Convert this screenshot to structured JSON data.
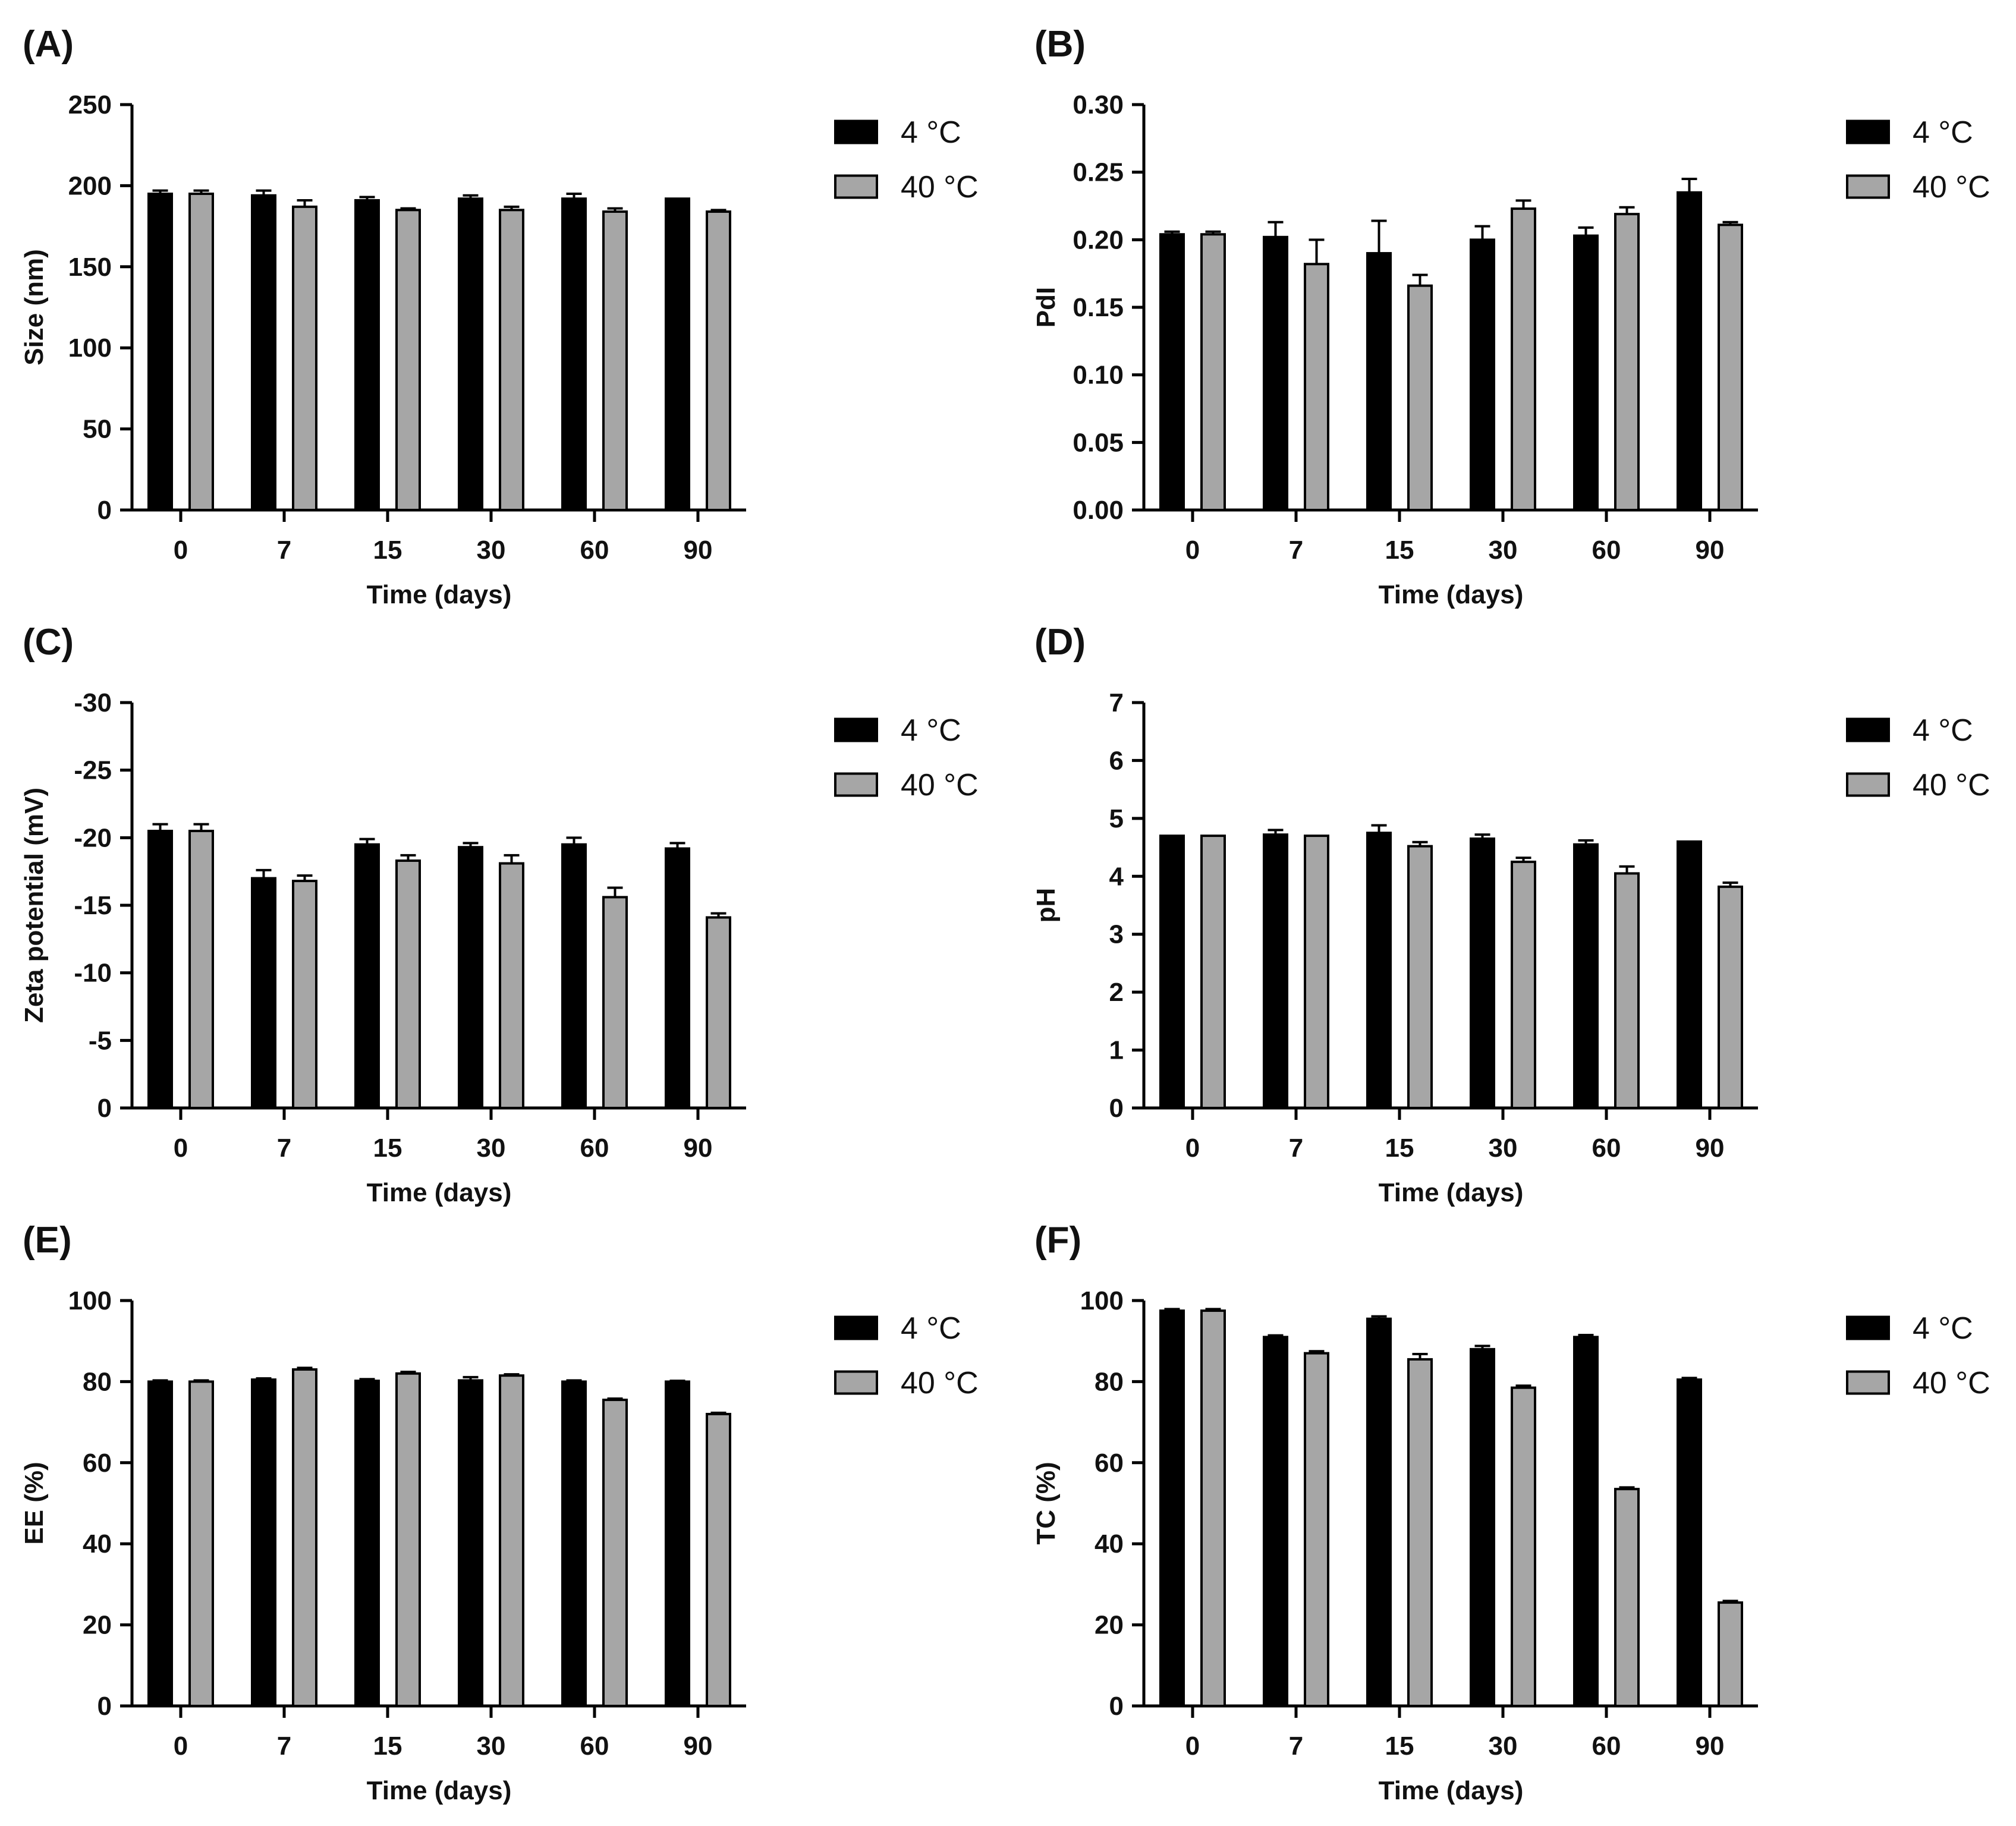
{
  "figure": {
    "colors": {
      "series_4C": "#000000",
      "series_40C": "#a6a6a6",
      "axis": "#000000"
    }
  },
  "chart_data": [
    {
      "panel": "(A)",
      "type": "bar",
      "categories": [
        "0",
        "7",
        "15",
        "30",
        "60",
        "90"
      ],
      "xlabel": "Time (days)",
      "ylabel": "Size (nm)",
      "ylim": [
        0,
        250
      ],
      "yticks": [
        0,
        50,
        100,
        150,
        200,
        250
      ],
      "ytick_labels": [
        "0",
        "50",
        "100",
        "150",
        "200",
        "250"
      ],
      "legend": [
        "4 °C",
        "40 °C"
      ],
      "legend_position": "right",
      "series": [
        {
          "name": "4 °C",
          "values": [
            195,
            194,
            191,
            192,
            192,
            192
          ],
          "errors": [
            2,
            3,
            2,
            2,
            3,
            0
          ]
        },
        {
          "name": "40 °C",
          "values": [
            195,
            187,
            185,
            185,
            184,
            184
          ],
          "errors": [
            2,
            4,
            1,
            2,
            2,
            1
          ]
        }
      ]
    },
    {
      "panel": "(B)",
      "type": "bar",
      "categories": [
        "0",
        "7",
        "15",
        "30",
        "60",
        "90"
      ],
      "xlabel": "Time (days)",
      "ylabel": "PdI",
      "ylim": [
        0,
        0.3
      ],
      "yticks": [
        0,
        0.05,
        0.1,
        0.15,
        0.2,
        0.25,
        0.3
      ],
      "ytick_labels": [
        "0.00",
        "0.05",
        "0.10",
        "0.15",
        "0.20",
        "0.25",
        "0.30"
      ],
      "legend": [
        "4 °C",
        "40 °C"
      ],
      "legend_position": "right",
      "series": [
        {
          "name": "4 °C",
          "values": [
            0.204,
            0.202,
            0.19,
            0.2,
            0.203,
            0.235
          ],
          "errors": [
            0.002,
            0.011,
            0.024,
            0.01,
            0.006,
            0.01
          ]
        },
        {
          "name": "40 °C",
          "values": [
            0.204,
            0.182,
            0.166,
            0.223,
            0.219,
            0.211
          ],
          "errors": [
            0.002,
            0.018,
            0.008,
            0.006,
            0.005,
            0.002
          ]
        }
      ]
    },
    {
      "panel": "(C)",
      "type": "bar",
      "categories": [
        "0",
        "7",
        "15",
        "30",
        "60",
        "90"
      ],
      "xlabel": "Time (days)",
      "ylabel": "Zeta potential (mV)",
      "ylim": [
        0,
        -30
      ],
      "yticks": [
        0,
        -5,
        -10,
        -15,
        -20,
        -25,
        -30
      ],
      "ytick_labels": [
        "0",
        "-5",
        "-10",
        "-15",
        "-20",
        "-25",
        "-30"
      ],
      "legend": [
        "4 °C",
        "40 °C"
      ],
      "legend_position": "right",
      "series": [
        {
          "name": "4 °C",
          "values": [
            -20.5,
            -17.0,
            -19.5,
            -19.3,
            -19.5,
            -19.2
          ],
          "errors": [
            0.5,
            0.6,
            0.4,
            0.3,
            0.5,
            0.4
          ]
        },
        {
          "name": "40 °C",
          "values": [
            -20.5,
            -16.8,
            -18.3,
            -18.1,
            -15.6,
            -14.1
          ],
          "errors": [
            0.5,
            0.4,
            0.4,
            0.6,
            0.7,
            0.3
          ]
        }
      ]
    },
    {
      "panel": "(D)",
      "type": "bar",
      "categories": [
        "0",
        "7",
        "15",
        "30",
        "60",
        "90"
      ],
      "xlabel": "Time (days)",
      "ylabel": "pH",
      "ylim": [
        0,
        7
      ],
      "yticks": [
        0,
        1,
        2,
        3,
        4,
        5,
        6,
        7
      ],
      "ytick_labels": [
        "0",
        "1",
        "2",
        "3",
        "4",
        "5",
        "6",
        "7"
      ],
      "legend": [
        "4 °C",
        "40 °C"
      ],
      "legend_position": "right",
      "series": [
        {
          "name": "4 °C",
          "values": [
            4.7,
            4.72,
            4.75,
            4.65,
            4.55,
            4.6
          ],
          "errors": [
            0,
            0.08,
            0.13,
            0.07,
            0.07,
            0
          ]
        },
        {
          "name": "40 °C",
          "values": [
            4.7,
            4.7,
            4.52,
            4.25,
            4.05,
            3.82
          ],
          "errors": [
            0,
            0,
            0.07,
            0.07,
            0.12,
            0.07
          ]
        }
      ]
    },
    {
      "panel": "(E)",
      "type": "bar",
      "categories": [
        "0",
        "7",
        "15",
        "30",
        "60",
        "90"
      ],
      "xlabel": "Time (days)",
      "ylabel": "EE (%)",
      "ylim": [
        0,
        100
      ],
      "yticks": [
        0,
        20,
        40,
        60,
        80,
        100
      ],
      "ytick_labels": [
        "0",
        "20",
        "40",
        "60",
        "80",
        "100"
      ],
      "legend": [
        "4 °C",
        "40 °C"
      ],
      "legend_position": "right",
      "series": [
        {
          "name": "4 °C",
          "values": [
            80,
            80.5,
            80.2,
            80.3,
            80,
            80
          ],
          "errors": [
            0.3,
            0.3,
            0.4,
            0.8,
            0.3,
            0.2
          ]
        },
        {
          "name": "40 °C",
          "values": [
            80,
            83,
            82,
            81.5,
            75.5,
            72
          ],
          "errors": [
            0.3,
            0.4,
            0.4,
            0.3,
            0.3,
            0.3
          ]
        }
      ]
    },
    {
      "panel": "(F)",
      "type": "bar",
      "categories": [
        "0",
        "7",
        "15",
        "30",
        "60",
        "90"
      ],
      "xlabel": "Time (days)",
      "ylabel": "TC (%)",
      "ylim": [
        0,
        100
      ],
      "yticks": [
        0,
        20,
        40,
        60,
        80,
        100
      ],
      "ytick_labels": [
        "0",
        "20",
        "40",
        "60",
        "80",
        "100"
      ],
      "legend": [
        "4 °C",
        "40 °C"
      ],
      "legend_position": "right",
      "series": [
        {
          "name": "4 °C",
          "values": [
            97.5,
            91,
            95.5,
            88,
            91,
            80.5
          ],
          "errors": [
            0.4,
            0.4,
            0.6,
            0.8,
            0.5,
            0.4
          ]
        },
        {
          "name": "40 °C",
          "values": [
            97.5,
            87,
            85.5,
            78.5,
            53.5,
            25.5
          ],
          "errors": [
            0.4,
            0.5,
            1.3,
            0.5,
            0.4,
            0.4
          ]
        }
      ]
    }
  ]
}
